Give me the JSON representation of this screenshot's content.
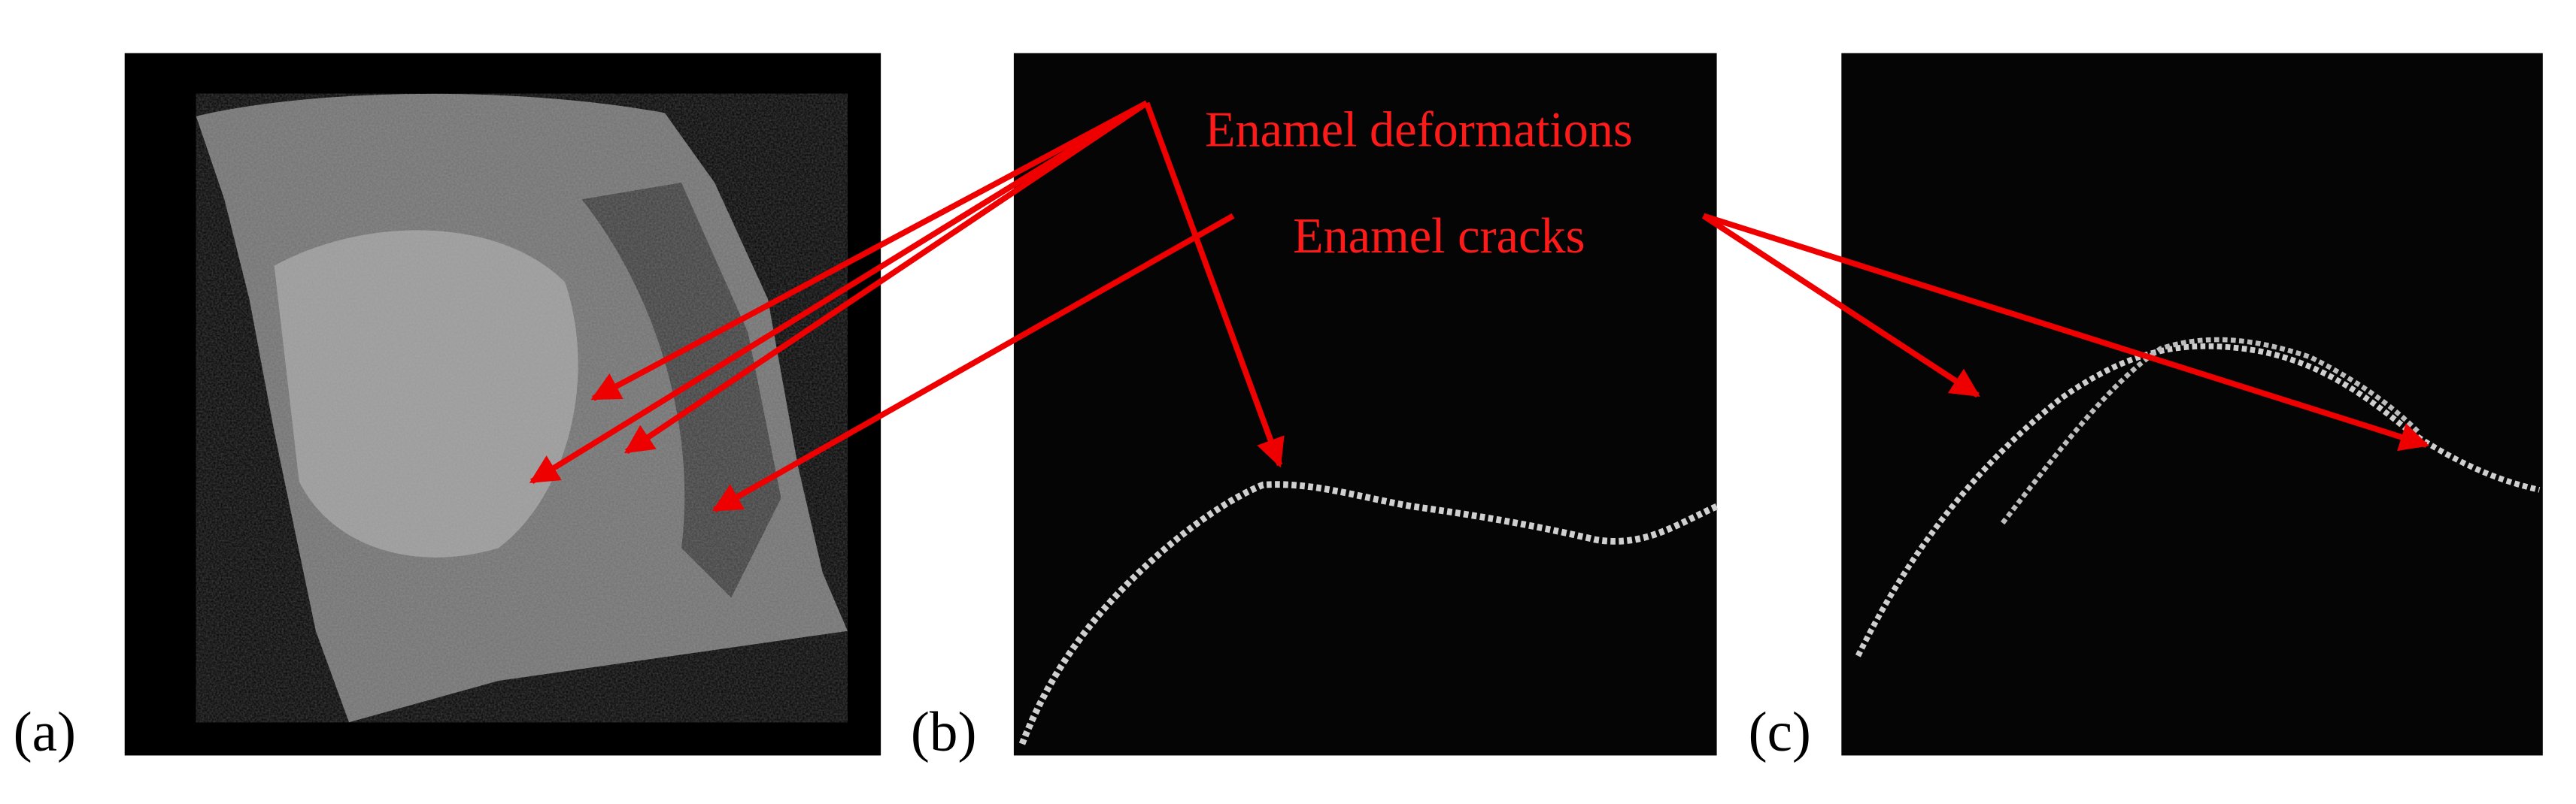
{
  "panels": [
    {
      "label": "(a)"
    },
    {
      "label": "(b)"
    },
    {
      "label": "(c)"
    }
  ],
  "annotations": {
    "deformations": "Enamel deformations",
    "cracks": "Enamel cracks"
  }
}
